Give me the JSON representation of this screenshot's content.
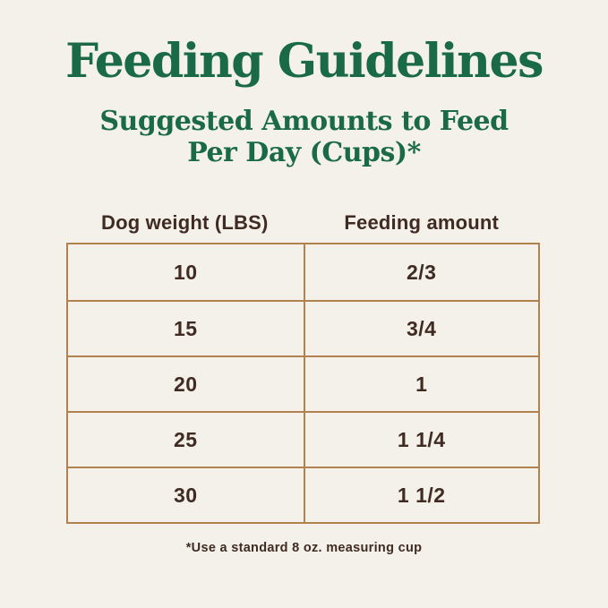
{
  "colors": {
    "background": "#f3f1ea",
    "accent_green": "#1a6a47",
    "table_border": "#b2824e",
    "text_dark": "#402b23"
  },
  "title": "Feeding Guidelines",
  "subtitle": {
    "line1": "Suggested Amounts to Feed",
    "line2": "Per Day (Cups)*"
  },
  "table": {
    "headers": [
      "Dog weight (LBS)",
      "Feeding amount"
    ],
    "rows": [
      {
        "weight": "10",
        "amount": "2/3"
      },
      {
        "weight": "15",
        "amount": "3/4"
      },
      {
        "weight": "20",
        "amount": "1"
      },
      {
        "weight": "25",
        "amount": "1 1/4"
      },
      {
        "weight": "30",
        "amount": "1 1/2"
      }
    ]
  },
  "footnote": "*Use a standard 8 oz. measuring cup",
  "chart_data": {
    "type": "table",
    "title": "Feeding Guidelines",
    "subtitle": "Suggested Amounts to Feed Per Day (Cups)*",
    "columns": [
      "Dog weight (LBS)",
      "Feeding amount"
    ],
    "rows": [
      [
        10,
        "2/3"
      ],
      [
        15,
        "3/4"
      ],
      [
        20,
        "1"
      ],
      [
        25,
        "1 1/4"
      ],
      [
        30,
        "1 1/2"
      ]
    ],
    "amounts_numeric_cups": [
      0.67,
      0.75,
      1,
      1.25,
      1.5
    ],
    "footnote": "*Use a standard 8 oz. measuring cup"
  }
}
